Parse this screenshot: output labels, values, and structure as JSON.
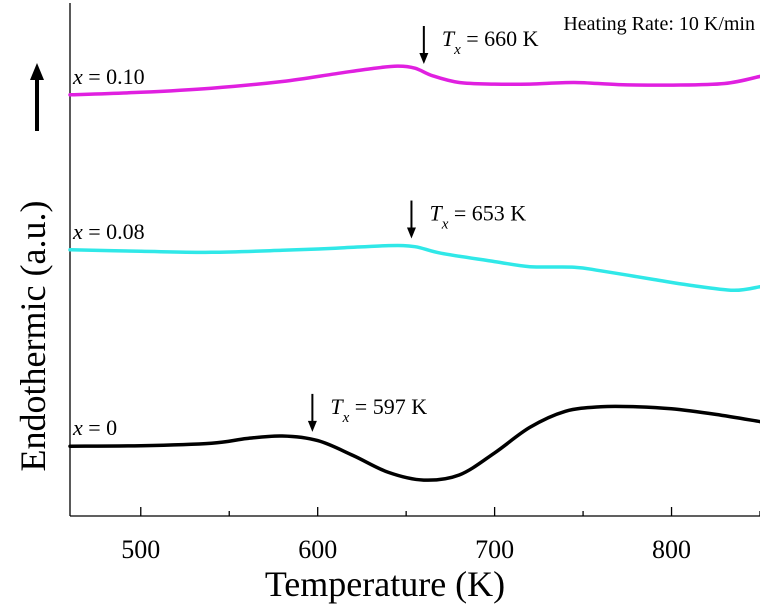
{
  "chart_data": {
    "type": "line",
    "xlabel": "Temperature (K)",
    "ylabel": "Endothermic (a.u.)",
    "xlim": [
      460,
      850
    ],
    "ylim": [
      0,
      1
    ],
    "x_ticks": [
      500,
      600,
      700,
      800
    ],
    "y_ticks_shown": false,
    "grid": false,
    "annotation": "Heating Rate: 10 K/min",
    "endothermic_direction": "up",
    "series": [
      {
        "name": "x = 0.10",
        "label_var": "x",
        "label_rest": " = 0.10",
        "color": "#e020e0",
        "tx_value": 660,
        "tx_label_var": "T",
        "tx_label_sub": "x",
        "tx_label_rest": " = 660 K",
        "x": [
          460,
          500,
          540,
          580,
          610,
          630,
          645,
          655,
          665,
          680,
          700,
          720,
          745,
          770,
          800,
          830,
          850
        ],
        "y": [
          0.821,
          0.826,
          0.834,
          0.847,
          0.862,
          0.872,
          0.877,
          0.873,
          0.858,
          0.845,
          0.842,
          0.842,
          0.845,
          0.841,
          0.84,
          0.843,
          0.857
        ]
      },
      {
        "name": "x = 0.08",
        "label_var": "x",
        "label_rest": " = 0.08",
        "color": "#30e8e8",
        "tx_value": 653,
        "tx_label_var": "T",
        "tx_label_sub": "x",
        "tx_label_rest": " = 653 K",
        "x": [
          460,
          500,
          540,
          580,
          610,
          640,
          655,
          670,
          700,
          720,
          745,
          760,
          790,
          810,
          835,
          850
        ],
        "y": [
          0.519,
          0.516,
          0.514,
          0.518,
          0.522,
          0.527,
          0.525,
          0.512,
          0.496,
          0.486,
          0.485,
          0.478,
          0.461,
          0.45,
          0.44,
          0.447
        ]
      },
      {
        "name": "x = 0",
        "label_var": "x",
        "label_rest": " = 0",
        "color": "#000000",
        "tx_value": 597,
        "tx_label_var": "T",
        "tx_label_sub": "x",
        "tx_label_rest": " = 597 K",
        "x": [
          460,
          500,
          540,
          560,
          580,
          600,
          620,
          640,
          660,
          680,
          700,
          720,
          740,
          760,
          780,
          800,
          825,
          850
        ],
        "y": [
          0.136,
          0.137,
          0.142,
          0.151,
          0.156,
          0.147,
          0.118,
          0.085,
          0.07,
          0.08,
          0.123,
          0.173,
          0.204,
          0.213,
          0.213,
          0.209,
          0.198,
          0.184
        ]
      }
    ]
  }
}
